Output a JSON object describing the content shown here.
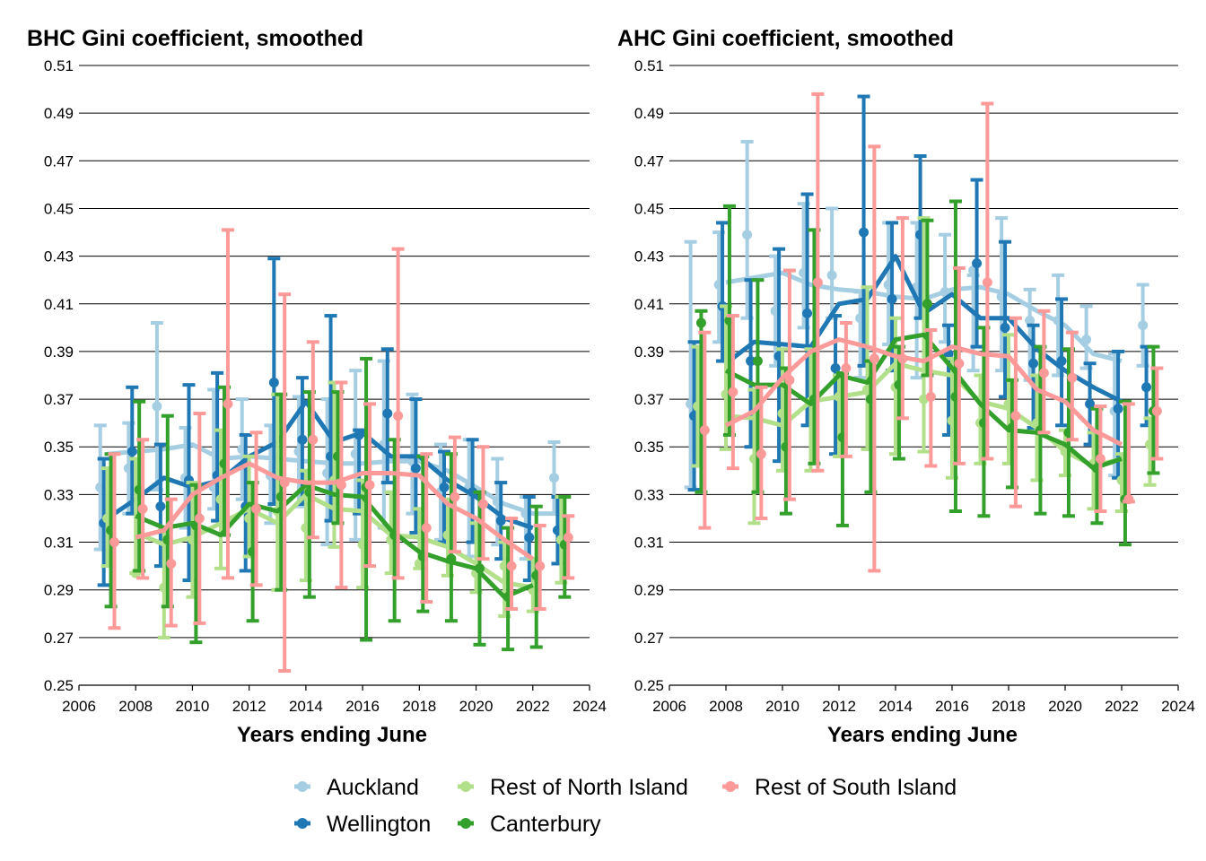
{
  "colors": {
    "Auckland": "#a6cee3",
    "Wellington": "#1f78b4",
    "Rest of North Island": "#b2df8a",
    "Canterbury": "#33a02c",
    "Rest of South Island": "#fb9a99"
  },
  "legend": {
    "position": "bottom",
    "items": [
      "Auckland",
      "Wellington",
      "Rest of North Island",
      "Canterbury",
      "Rest of South Island"
    ]
  },
  "chart_data": [
    {
      "type": "line",
      "title": "BHC Gini coefficient, smoothed",
      "xlabel": "Years ending June",
      "ylabel": "",
      "xlim": [
        2006,
        2024
      ],
      "ylim": [
        0.25,
        0.51
      ],
      "xticks": [
        "2006",
        "2008",
        "2010",
        "2012",
        "2014",
        "2016",
        "2018",
        "2020",
        "2022",
        "2024"
      ],
      "yticks": [
        "0.25",
        "0.27",
        "0.29",
        "0.31",
        "0.33",
        "0.35",
        "0.37",
        "0.39",
        "0.41",
        "0.43",
        "0.45",
        "0.47",
        "0.49",
        "0.51"
      ],
      "grid": "horizontal",
      "x": [
        2007,
        2008,
        2009,
        2010,
        2011,
        2012,
        2013,
        2014,
        2015,
        2016,
        2017,
        2018,
        2019,
        2020,
        2021,
        2022,
        2023
      ],
      "series": [
        {
          "name": "Auckland",
          "smooth": [
            0.347,
            0.348,
            0.349,
            0.351,
            0.345,
            0.346,
            0.345,
            0.344,
            0.343,
            0.343,
            0.344,
            0.344,
            0.34,
            0.333,
            0.326,
            0.322,
            0.322
          ],
          "points": [
            0.333,
            0.341,
            0.367,
            0.337,
            0.333,
            0.349,
            0.338,
            0.348,
            0.339,
            0.347,
            0.351,
            0.344,
            0.331,
            0.333,
            0.327,
            0.322,
            0.337
          ],
          "lower": [
            0.307,
            0.322,
            0.332,
            0.316,
            0.324,
            0.328,
            0.318,
            0.325,
            0.309,
            0.311,
            0.316,
            0.322,
            0.311,
            0.304,
            0.309,
            0.303,
            0.322
          ],
          "upper": [
            0.359,
            0.36,
            0.402,
            0.358,
            0.374,
            0.37,
            0.359,
            0.371,
            0.37,
            0.382,
            0.386,
            0.372,
            0.351,
            0.353,
            0.345,
            0.329,
            0.352
          ]
        },
        {
          "name": "Wellington",
          "smooth": [
            0.32,
            0.328,
            0.337,
            0.333,
            0.336,
            0.346,
            0.352,
            0.369,
            0.352,
            0.356,
            0.346,
            0.346,
            0.336,
            0.329,
            0.32,
            0.316,
            null
          ],
          "points": [
            0.318,
            0.348,
            0.325,
            0.336,
            0.338,
            0.325,
            0.377,
            0.353,
            0.346,
            0.355,
            0.364,
            0.341,
            0.333,
            0.331,
            0.319,
            0.312,
            0.315
          ],
          "lower": [
            0.292,
            0.322,
            0.3,
            0.294,
            0.319,
            0.298,
            0.326,
            0.326,
            0.319,
            0.322,
            0.335,
            0.314,
            0.31,
            0.31,
            0.303,
            0.294,
            0.301
          ],
          "upper": [
            0.345,
            0.375,
            0.351,
            0.376,
            0.381,
            0.355,
            0.429,
            0.379,
            0.405,
            0.357,
            0.391,
            0.37,
            0.348,
            0.353,
            0.335,
            0.329,
            0.329
          ]
        },
        {
          "name": "Rest of North Island",
          "smooth": [
            null,
            0.314,
            0.309,
            0.312,
            0.318,
            0.324,
            0.318,
            0.33,
            0.324,
            0.323,
            0.313,
            0.312,
            0.308,
            0.301,
            0.293,
            0.291,
            null
          ],
          "points": [
            0.32,
            0.297,
            0.291,
            0.311,
            0.328,
            0.32,
            0.323,
            0.316,
            0.336,
            0.309,
            0.311,
            0.301,
            0.313,
            0.297,
            0.3,
            0.29,
            0.311
          ],
          "lower": [
            0.3,
            0.297,
            0.27,
            0.287,
            0.299,
            0.304,
            0.29,
            0.294,
            0.308,
            0.291,
            0.297,
            0.299,
            0.296,
            0.289,
            0.279,
            0.281,
            0.293
          ],
          "upper": [
            0.341,
            0.345,
            0.315,
            0.335,
            0.357,
            0.346,
            0.372,
            0.34,
            0.377,
            0.336,
            0.331,
            0.324,
            0.328,
            0.318,
            0.31,
            0.303,
            0.329
          ]
        },
        {
          "name": "Canterbury",
          "smooth": [
            null,
            0.321,
            0.316,
            0.318,
            0.313,
            0.326,
            0.323,
            0.334,
            0.33,
            0.329,
            0.315,
            0.306,
            0.302,
            0.299,
            0.287,
            0.292,
            null
          ],
          "points": [
            0.315,
            0.332,
            0.311,
            0.317,
            0.343,
            0.306,
            0.329,
            0.331,
            0.346,
            0.333,
            0.313,
            0.304,
            0.303,
            0.299,
            0.287,
            0.296,
            0.309
          ],
          "lower": [
            0.283,
            0.298,
            0.283,
            0.268,
            0.313,
            0.277,
            0.29,
            0.287,
            0.318,
            0.269,
            0.277,
            0.281,
            0.277,
            0.267,
            0.265,
            0.266,
            0.287
          ],
          "upper": [
            0.347,
            0.369,
            0.363,
            0.334,
            0.375,
            0.335,
            0.372,
            0.373,
            0.373,
            0.387,
            0.353,
            0.346,
            0.347,
            0.331,
            0.316,
            0.325,
            0.329
          ]
        },
        {
          "name": "Rest of South Island",
          "smooth": [
            null,
            0.312,
            0.315,
            0.33,
            0.337,
            0.343,
            0.337,
            0.335,
            0.335,
            0.339,
            0.339,
            0.338,
            0.326,
            0.32,
            0.311,
            0.303,
            null
          ],
          "points": [
            0.31,
            0.324,
            0.301,
            0.32,
            0.368,
            0.324,
            0.335,
            0.353,
            0.334,
            0.334,
            0.363,
            0.316,
            0.329,
            0.326,
            0.3,
            0.3,
            0.312
          ],
          "lower": [
            0.274,
            0.295,
            0.275,
            0.276,
            0.295,
            0.292,
            0.256,
            0.312,
            0.291,
            0.3,
            0.295,
            0.285,
            0.306,
            0.303,
            0.282,
            0.282,
            0.295
          ],
          "upper": [
            0.347,
            0.353,
            0.328,
            0.364,
            0.441,
            0.356,
            0.414,
            0.394,
            0.377,
            0.368,
            0.433,
            0.347,
            0.354,
            0.35,
            0.32,
            0.317,
            0.321
          ]
        }
      ]
    },
    {
      "type": "line",
      "title": "AHC Gini coefficient, smoothed",
      "xlabel": "Years ending June",
      "ylabel": "",
      "xlim": [
        2006,
        2024
      ],
      "ylim": [
        0.25,
        0.51
      ],
      "xticks": [
        "2006",
        "2008",
        "2010",
        "2012",
        "2014",
        "2016",
        "2018",
        "2020",
        "2022",
        "2024"
      ],
      "yticks": [
        "0.25",
        "0.27",
        "0.29",
        "0.31",
        "0.33",
        "0.35",
        "0.37",
        "0.39",
        "0.41",
        "0.43",
        "0.45",
        "0.47",
        "0.49",
        "0.51"
      ],
      "grid": "horizontal",
      "x": [
        2007,
        2008,
        2009,
        2010,
        2011,
        2012,
        2013,
        2014,
        2015,
        2016,
        2017,
        2018,
        2019,
        2020,
        2021,
        2022,
        2023
      ],
      "series": [
        {
          "name": "Auckland",
          "smooth": [
            null,
            0.419,
            0.421,
            0.423,
            0.418,
            0.416,
            0.415,
            0.413,
            0.412,
            0.416,
            0.417,
            0.414,
            0.407,
            0.401,
            0.389,
            0.386,
            null
          ],
          "points": [
            0.368,
            0.418,
            0.439,
            0.407,
            0.423,
            0.422,
            0.404,
            0.418,
            0.417,
            0.415,
            0.424,
            0.413,
            0.403,
            0.403,
            0.395,
            0.365,
            0.401
          ],
          "lower": [
            0.333,
            0.394,
            0.404,
            0.384,
            0.4,
            0.404,
            0.379,
            0.393,
            0.379,
            0.394,
            0.382,
            0.382,
            0.378,
            0.38,
            0.383,
            0.338,
            0.384
          ],
          "upper": [
            0.436,
            0.44,
            0.478,
            0.43,
            0.452,
            0.45,
            0.415,
            0.444,
            0.444,
            0.439,
            0.422,
            0.446,
            0.416,
            0.422,
            0.409,
            0.389,
            0.418
          ]
        },
        {
          "name": "Wellington",
          "smooth": [
            null,
            0.385,
            0.394,
            0.393,
            0.392,
            0.41,
            0.412,
            0.43,
            0.406,
            0.414,
            0.404,
            0.404,
            0.391,
            0.382,
            0.375,
            0.369,
            null
          ],
          "points": [
            0.363,
            0.409,
            0.386,
            0.388,
            0.406,
            0.383,
            0.44,
            0.412,
            0.439,
            0.389,
            0.427,
            0.4,
            0.385,
            0.386,
            0.368,
            0.366,
            0.375
          ],
          "lower": [
            0.332,
            0.386,
            0.35,
            0.344,
            0.359,
            0.347,
            0.384,
            0.382,
            0.404,
            0.355,
            0.392,
            0.371,
            0.358,
            0.359,
            0.351,
            0.337,
            0.359
          ],
          "upper": [
            0.394,
            0.444,
            0.42,
            0.433,
            0.456,
            0.405,
            0.497,
            0.444,
            0.472,
            0.401,
            0.462,
            0.436,
            0.401,
            0.412,
            0.385,
            0.39,
            0.392
          ]
        },
        {
          "name": "Rest of North Island",
          "smooth": [
            null,
            0.363,
            0.362,
            0.359,
            0.369,
            0.371,
            0.373,
            0.385,
            0.382,
            0.38,
            0.369,
            0.366,
            0.358,
            0.348,
            0.342,
            0.345,
            null
          ],
          "points": [
            0.367,
            0.372,
            0.345,
            0.364,
            0.369,
            0.371,
            0.374,
            0.375,
            0.37,
            0.361,
            0.36,
            0.368,
            0.36,
            0.348,
            0.343,
            0.336,
            0.351
          ],
          "lower": [
            0.342,
            0.349,
            0.318,
            0.34,
            0.34,
            0.346,
            0.349,
            0.347,
            0.348,
            0.337,
            0.343,
            0.343,
            0.336,
            0.338,
            0.324,
            0.323,
            0.334
          ],
          "upper": [
            0.392,
            0.409,
            0.374,
            0.391,
            0.391,
            0.38,
            0.417,
            0.404,
            0.446,
            0.387,
            0.38,
            0.397,
            0.38,
            0.357,
            0.356,
            0.347,
            0.362
          ]
        },
        {
          "name": "Canterbury",
          "smooth": [
            null,
            0.382,
            0.376,
            0.376,
            0.368,
            0.38,
            0.377,
            0.395,
            0.397,
            0.383,
            0.368,
            0.357,
            0.356,
            0.351,
            0.341,
            0.345,
            null
          ],
          "points": [
            0.402,
            0.403,
            0.386,
            0.35,
            0.37,
            0.354,
            0.37,
            0.376,
            0.41,
            0.371,
            0.36,
            0.358,
            0.357,
            0.356,
            0.341,
            0.328,
            0.365
          ],
          "lower": [
            0.331,
            0.355,
            0.331,
            0.322,
            0.343,
            0.317,
            0.331,
            0.345,
            0.38,
            0.323,
            0.321,
            0.333,
            0.322,
            0.321,
            0.318,
            0.309,
            0.339
          ],
          "upper": [
            0.407,
            0.451,
            0.42,
            0.383,
            0.441,
            0.381,
            0.386,
            0.392,
            0.445,
            0.453,
            0.4,
            0.378,
            0.392,
            0.391,
            0.366,
            0.369,
            0.392
          ]
        },
        {
          "name": "Rest of South Island",
          "smooth": [
            null,
            0.359,
            0.365,
            0.379,
            0.39,
            0.395,
            0.392,
            0.388,
            0.386,
            0.392,
            0.389,
            0.388,
            0.374,
            0.369,
            0.357,
            0.351,
            null
          ],
          "points": [
            0.357,
            0.373,
            0.347,
            0.378,
            0.419,
            0.383,
            0.387,
            0.387,
            0.371,
            0.385,
            0.419,
            0.363,
            0.381,
            0.379,
            0.345,
            0.328,
            0.365
          ],
          "lower": [
            0.316,
            0.341,
            0.32,
            0.328,
            0.34,
            0.346,
            0.298,
            0.362,
            0.342,
            0.343,
            0.345,
            0.325,
            0.356,
            0.353,
            0.323,
            0.327,
            0.345
          ],
          "upper": [
            0.398,
            0.405,
            0.375,
            0.424,
            0.498,
            0.402,
            0.476,
            0.446,
            0.399,
            0.425,
            0.494,
            0.404,
            0.407,
            0.398,
            0.367,
            0.368,
            0.383
          ]
        }
      ]
    }
  ]
}
